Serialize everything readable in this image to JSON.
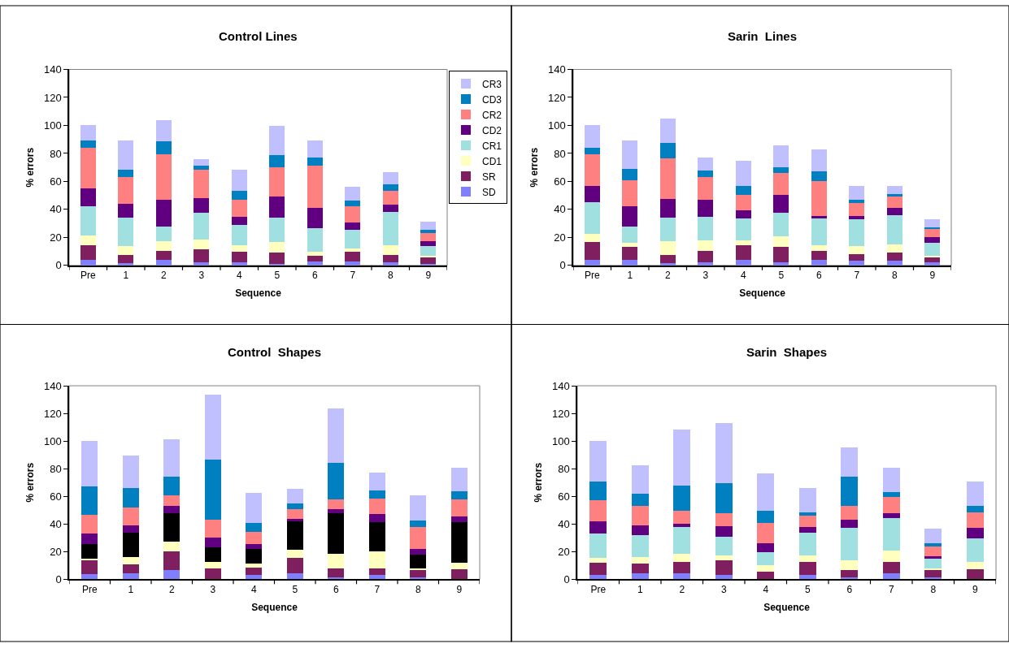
{
  "chart_data": [
    {
      "type": "bar",
      "title": "Control Lines",
      "xlabel": "Sequence",
      "ylabel": "% errors",
      "stacked": true,
      "legend": "right",
      "categories": [
        "Pre",
        "1",
        "2",
        "3",
        "4",
        "5",
        "6",
        "7",
        "8",
        "9"
      ],
      "ylim": [
        0,
        140
      ],
      "yticks": [
        0,
        20,
        40,
        60,
        80,
        100,
        120,
        140
      ],
      "series": [
        {
          "name": "SD",
          "color": "#8080ff",
          "values": [
            4,
            1.5,
            4,
            2.5,
            2,
            1,
            3,
            3,
            2,
            1
          ]
        },
        {
          "name": "SR",
          "color": "#7f1f5f",
          "values": [
            10.5,
            6,
            6.5,
            9,
            7.5,
            8,
            4,
            7,
            5.5,
            5
          ]
        },
        {
          "name": "CD1",
          "color": "#ffffc0",
          "values": [
            7,
            6.5,
            7,
            7,
            5,
            8,
            3,
            2,
            7,
            1
          ]
        },
        {
          "name": "CR1",
          "color": "#a0e0e0",
          "values": [
            21,
            20,
            10,
            19,
            14.5,
            17,
            16.5,
            13.5,
            23.5,
            7
          ]
        },
        {
          "name": "CD2",
          "color": "#600080",
          "values": [
            12.5,
            10,
            19.5,
            10.5,
            6,
            15.5,
            14.5,
            5,
            5.5,
            3.5
          ]
        },
        {
          "name": "CR2",
          "color": "#ff8080",
          "values": [
            29,
            19,
            32.5,
            20.5,
            12,
            20.5,
            30,
            12,
            9.5,
            5.5
          ]
        },
        {
          "name": "CD3",
          "color": "#0080c0",
          "values": [
            5,
            5.5,
            9,
            2.5,
            6.5,
            9,
            6,
            4,
            5,
            2.5
          ]
        },
        {
          "name": "CR3",
          "color": "#c0c0ff",
          "values": [
            11.5,
            21,
            15.5,
            5,
            15,
            20.5,
            12.5,
            9.5,
            8.5,
            5.5
          ]
        }
      ]
    },
    {
      "type": "bar",
      "title": "Sarin  Lines",
      "xlabel": "Sequence",
      "ylabel": "% errors",
      "stacked": true,
      "categories": [
        "Pre",
        "1",
        "2",
        "3",
        "4",
        "5",
        "6",
        "7",
        "8",
        "9"
      ],
      "ylim": [
        0,
        140
      ],
      "yticks": [
        0,
        20,
        40,
        60,
        80,
        100,
        120,
        140
      ],
      "series": [
        {
          "color": "#8080ff",
          "values": [
            4,
            4,
            1.5,
            2.5,
            4,
            2.5,
            4,
            3.5,
            3.5,
            2
          ]
        },
        {
          "color": "#7f1f5f",
          "values": [
            12.5,
            9,
            6,
            8,
            10.5,
            10.5,
            6.5,
            4.5,
            5.5,
            4
          ]
        },
        {
          "color": "#ffffc0",
          "values": [
            6,
            3,
            10,
            7.5,
            3.5,
            8,
            4,
            6,
            6,
            1
          ]
        },
        {
          "color": "#a0e0e0",
          "values": [
            22.5,
            11.5,
            16.5,
            16.5,
            15.5,
            16.5,
            19,
            19,
            21,
            9
          ]
        },
        {
          "color": "#600080",
          "values": [
            11.5,
            14.5,
            13.5,
            12.5,
            6,
            13,
            2,
            2.5,
            5,
            4.5
          ]
        },
        {
          "color": "#ff8080",
          "values": [
            23,
            19,
            29,
            16,
            11,
            15.5,
            25,
            9,
            8,
            5.5
          ]
        },
        {
          "color": "#0080c0",
          "values": [
            4.5,
            8,
            11,
            5,
            6.5,
            4,
            6.5,
            2.5,
            2,
            1
          ]
        },
        {
          "color": "#c0c0ff",
          "values": [
            16,
            20,
            17.5,
            9,
            17.5,
            16,
            16,
            9.5,
            6,
            6
          ]
        }
      ]
    },
    {
      "type": "bar",
      "title": "Control  Shapes",
      "xlabel": "Sequence",
      "ylabel": "% errors",
      "stacked": true,
      "categories": [
        "Pre",
        "1",
        "2",
        "3",
        "4",
        "5",
        "6",
        "7",
        "8",
        "9"
      ],
      "ylim": [
        0,
        140
      ],
      "yticks": [
        0,
        20,
        40,
        60,
        80,
        100,
        120,
        140
      ],
      "series": [
        {
          "color": "#8080ff",
          "values": [
            4,
            4.5,
            6.5,
            null,
            3,
            4.5,
            1.5,
            3,
            1.5,
            null
          ]
        },
        {
          "color": "#7f1f5f",
          "values": [
            9.5,
            6.5,
            13.5,
            8,
            5.5,
            11,
            6.5,
            5,
            5,
            7.5
          ]
        },
        {
          "color": "#ffffc0",
          "values": [
            1.5,
            5,
            7.5,
            4.5,
            3,
            6,
            10.5,
            12,
            1.5,
            4.5
          ]
        },
        {
          "color": "#000000",
          "values": [
            10.5,
            17.5,
            20.5,
            10.5,
            10.5,
            20.5,
            29.5,
            21.5,
            10,
            29.5
          ]
        },
        {
          "color": "#600080",
          "values": [
            7.5,
            5.5,
            5,
            7.5,
            3.5,
            1.5,
            3,
            5.5,
            4,
            4
          ]
        },
        {
          "color": "#ff8080",
          "values": [
            13.5,
            13,
            7.5,
            12.5,
            9,
            7.5,
            7,
            11.5,
            16,
            12.5
          ]
        },
        {
          "color": "#0080c0",
          "values": [
            20.5,
            14,
            13.5,
            43.5,
            6,
            4,
            26,
            5.5,
            4.5,
            5.5
          ]
        },
        {
          "color": "#c0c0ff",
          "values": [
            33,
            23.5,
            27,
            47,
            22,
            10.5,
            39.5,
            13,
            18.5,
            17
          ]
        }
      ]
    },
    {
      "type": "bar",
      "title": "Sarin  Shapes",
      "xlabel": "Sequence",
      "ylabel": "% errors",
      "stacked": true,
      "categories": [
        "Pre",
        "1",
        "2",
        "3",
        "4",
        "5",
        "6",
        "7",
        "8",
        "9"
      ],
      "ylim": [
        0,
        140
      ],
      "yticks": [
        0,
        20,
        40,
        60,
        80,
        100,
        120,
        140
      ],
      "series": [
        {
          "color": "#8080ff",
          "values": [
            3.5,
            4.5,
            4.5,
            3,
            null,
            3,
            1.5,
            4.5,
            1.5,
            null
          ]
        },
        {
          "color": "#7f1f5f",
          "values": [
            8.5,
            7,
            8,
            11,
            5.5,
            9.5,
            5.5,
            8,
            5,
            7.5
          ]
        },
        {
          "color": "#ffffc0",
          "values": [
            3.5,
            4.5,
            6,
            3.5,
            4.5,
            5,
            6.5,
            8.5,
            1.5,
            5
          ]
        },
        {
          "color": "#a0e0e0",
          "values": [
            17.5,
            16,
            19.5,
            13.5,
            9.5,
            16.5,
            23.5,
            23.5,
            7,
            17
          ]
        },
        {
          "color": "#600080",
          "values": [
            9,
            7,
            2,
            7.5,
            6.5,
            4,
            6,
            3.5,
            2,
            8
          ]
        },
        {
          "color": "#ff8080",
          "values": [
            15.5,
            14,
            9.5,
            9.5,
            14.5,
            8,
            10,
            11.5,
            7,
            11
          ]
        },
        {
          "color": "#0080c0",
          "values": [
            13.5,
            9,
            18.5,
            21.5,
            9,
            2.5,
            21,
            3.5,
            2,
            4.5
          ]
        },
        {
          "color": "#c0c0ff",
          "values": [
            29,
            20.5,
            40.5,
            43.5,
            27,
            17.5,
            21.5,
            17.5,
            10.5,
            17.5
          ]
        }
      ]
    }
  ]
}
